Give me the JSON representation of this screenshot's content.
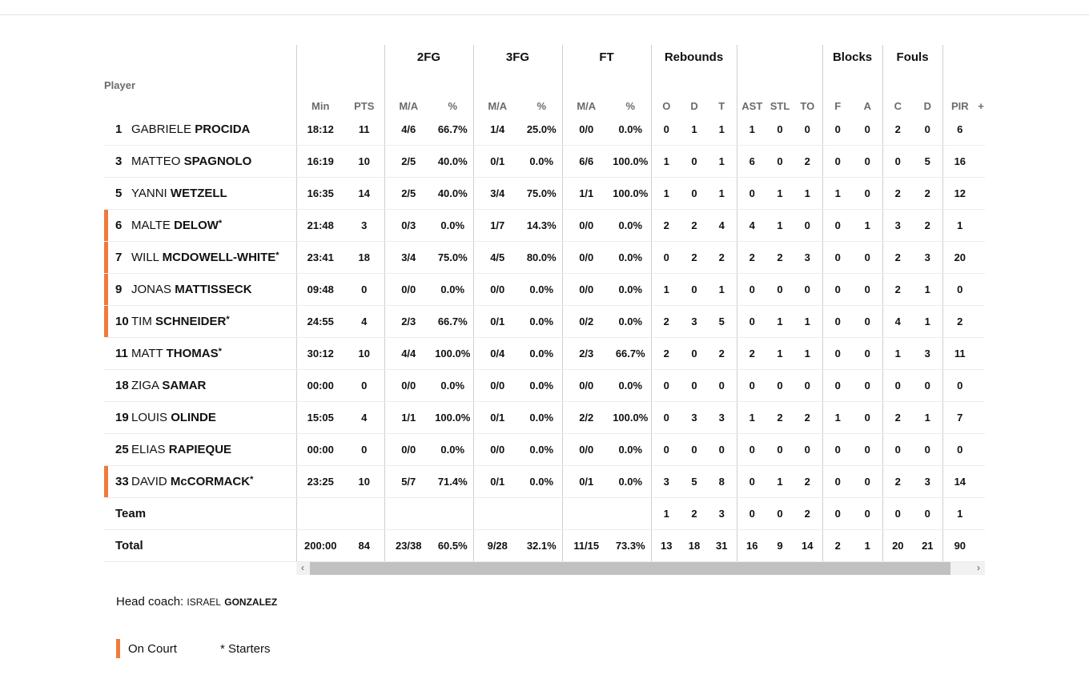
{
  "colors": {
    "on_court": "#f07a3c",
    "divider": "#cfcfcf",
    "header_text": "#6b6b6b"
  },
  "groups": {
    "fg2": "2FG",
    "fg3": "3FG",
    "ft": "FT",
    "rebounds": "Rebounds",
    "blocks": "Blocks",
    "fouls": "Fouls"
  },
  "columns": {
    "player": "Player",
    "min": "Min",
    "pts": "PTS",
    "fg2_ma": "M/A",
    "fg2_pct": "%",
    "fg3_ma": "M/A",
    "fg3_pct": "%",
    "ft_ma": "M/A",
    "ft_pct": "%",
    "reb_o": "O",
    "reb_d": "D",
    "reb_t": "T",
    "ast": "AST",
    "stl": "STL",
    "to": "TO",
    "blk_f": "F",
    "blk_a": "A",
    "foul_c": "C",
    "foul_d": "D",
    "pir": "PIR",
    "pm": "+"
  },
  "players": [
    {
      "num": "1",
      "first": "GABRIELE",
      "last": "PROCIDA",
      "starter": false,
      "on_court": false,
      "stats": [
        "18:12",
        "11",
        "4/6",
        "66.7%",
        "1/4",
        "25.0%",
        "0/0",
        "0.0%",
        "0",
        "1",
        "1",
        "1",
        "0",
        "0",
        "0",
        "0",
        "2",
        "0",
        "6"
      ]
    },
    {
      "num": "3",
      "first": "MATTEO",
      "last": "SPAGNOLO",
      "starter": false,
      "on_court": false,
      "stats": [
        "16:19",
        "10",
        "2/5",
        "40.0%",
        "0/1",
        "0.0%",
        "6/6",
        "100.0%",
        "1",
        "0",
        "1",
        "6",
        "0",
        "2",
        "0",
        "0",
        "0",
        "5",
        "16"
      ]
    },
    {
      "num": "5",
      "first": "YANNI",
      "last": "WETZELL",
      "starter": false,
      "on_court": false,
      "stats": [
        "16:35",
        "14",
        "2/5",
        "40.0%",
        "3/4",
        "75.0%",
        "1/1",
        "100.0%",
        "1",
        "0",
        "1",
        "0",
        "1",
        "1",
        "1",
        "0",
        "2",
        "2",
        "12"
      ]
    },
    {
      "num": "6",
      "first": "MALTE",
      "last": "DELOW",
      "starter": true,
      "on_court": true,
      "stats": [
        "21:48",
        "3",
        "0/3",
        "0.0%",
        "1/7",
        "14.3%",
        "0/0",
        "0.0%",
        "2",
        "2",
        "4",
        "4",
        "1",
        "0",
        "0",
        "1",
        "3",
        "2",
        "1"
      ]
    },
    {
      "num": "7",
      "first": "WILL",
      "last": "MCDOWELL-WHITE",
      "starter": true,
      "on_court": true,
      "stats": [
        "23:41",
        "18",
        "3/4",
        "75.0%",
        "4/5",
        "80.0%",
        "0/0",
        "0.0%",
        "0",
        "2",
        "2",
        "2",
        "2",
        "3",
        "0",
        "0",
        "2",
        "3",
        "20"
      ]
    },
    {
      "num": "9",
      "first": "JONAS",
      "last": "MATTISSECK",
      "starter": false,
      "on_court": true,
      "stats": [
        "09:48",
        "0",
        "0/0",
        "0.0%",
        "0/0",
        "0.0%",
        "0/0",
        "0.0%",
        "1",
        "0",
        "1",
        "0",
        "0",
        "0",
        "0",
        "0",
        "2",
        "1",
        "0"
      ]
    },
    {
      "num": "10",
      "first": "TIM",
      "last": "SCHNEIDER",
      "starter": true,
      "on_court": true,
      "stats": [
        "24:55",
        "4",
        "2/3",
        "66.7%",
        "0/1",
        "0.0%",
        "0/2",
        "0.0%",
        "2",
        "3",
        "5",
        "0",
        "1",
        "1",
        "0",
        "0",
        "4",
        "1",
        "2"
      ]
    },
    {
      "num": "11",
      "first": "MATT",
      "last": "THOMAS",
      "starter": true,
      "on_court": false,
      "stats": [
        "30:12",
        "10",
        "4/4",
        "100.0%",
        "0/4",
        "0.0%",
        "2/3",
        "66.7%",
        "2",
        "0",
        "2",
        "2",
        "1",
        "1",
        "0",
        "0",
        "1",
        "3",
        "11"
      ]
    },
    {
      "num": "18",
      "first": "ZIGA",
      "last": "SAMAR",
      "starter": false,
      "on_court": false,
      "stats": [
        "00:00",
        "0",
        "0/0",
        "0.0%",
        "0/0",
        "0.0%",
        "0/0",
        "0.0%",
        "0",
        "0",
        "0",
        "0",
        "0",
        "0",
        "0",
        "0",
        "0",
        "0",
        "0"
      ]
    },
    {
      "num": "19",
      "first": "LOUIS",
      "last": "OLINDE",
      "starter": false,
      "on_court": false,
      "stats": [
        "15:05",
        "4",
        "1/1",
        "100.0%",
        "0/1",
        "0.0%",
        "2/2",
        "100.0%",
        "0",
        "3",
        "3",
        "1",
        "2",
        "2",
        "1",
        "0",
        "2",
        "1",
        "7"
      ]
    },
    {
      "num": "25",
      "first": "ELIAS",
      "last": "RAPIEQUE",
      "starter": false,
      "on_court": false,
      "stats": [
        "00:00",
        "0",
        "0/0",
        "0.0%",
        "0/0",
        "0.0%",
        "0/0",
        "0.0%",
        "0",
        "0",
        "0",
        "0",
        "0",
        "0",
        "0",
        "0",
        "0",
        "0",
        "0"
      ]
    },
    {
      "num": "33",
      "first": "DAVID",
      "last": "McCORMACK",
      "starter": true,
      "on_court": true,
      "stats": [
        "23:25",
        "10",
        "5/7",
        "71.4%",
        "0/1",
        "0.0%",
        "0/1",
        "0.0%",
        "3",
        "5",
        "8",
        "0",
        "1",
        "2",
        "0",
        "0",
        "2",
        "3",
        "14"
      ]
    }
  ],
  "team": {
    "label": "Team",
    "stats": [
      "",
      "",
      "",
      "",
      "",
      "",
      "",
      "",
      "1",
      "2",
      "3",
      "0",
      "0",
      "2",
      "0",
      "0",
      "0",
      "0",
      "1"
    ]
  },
  "total": {
    "label": "Total",
    "stats": [
      "200:00",
      "84",
      "23/38",
      "60.5%",
      "9/28",
      "32.1%",
      "11/15",
      "73.3%",
      "13",
      "18",
      "31",
      "16",
      "9",
      "14",
      "2",
      "1",
      "20",
      "21",
      "90"
    ]
  },
  "scrollbar": {
    "left_arrow": "‹",
    "right_arrow": "›"
  },
  "coach": {
    "prefix": "Head coach:",
    "first": "ISRAEL",
    "last": "GONZALEZ"
  },
  "legend": {
    "on_court": "On Court",
    "starters": "* Starters"
  }
}
